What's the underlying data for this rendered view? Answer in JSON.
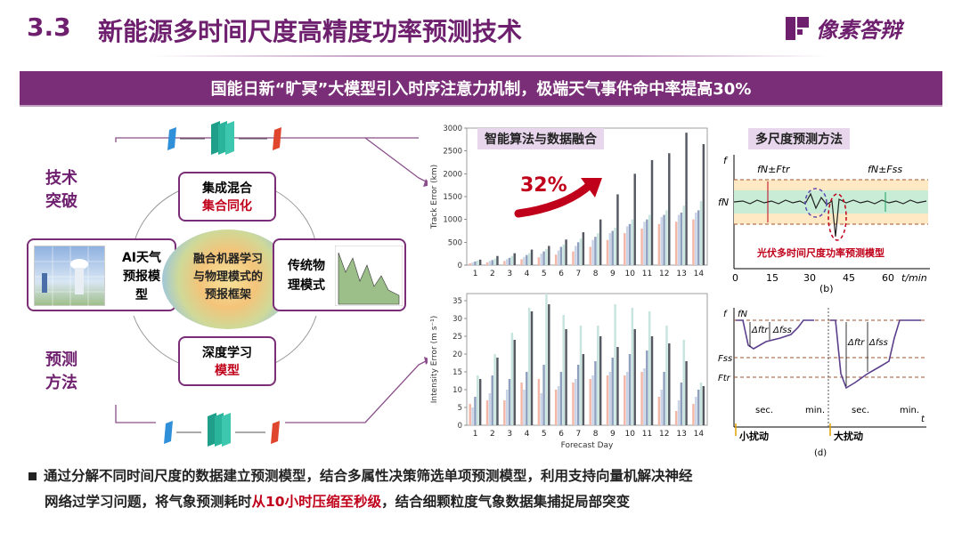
{
  "header": {
    "section_number": "3.3",
    "title": "新能源多时间尺度高精度功率预测技术",
    "logo_text": "像素答辩"
  },
  "banner": {
    "text": "国能日新“旷冥”大模型引入时序注意力机制，极端天气事件命中率提高30%"
  },
  "left_diagram": {
    "label_top_1": "技术",
    "label_top_2": "突破",
    "label_bottom_1": "预测",
    "label_bottom_2": "方法",
    "box_top_line1": "集成混合",
    "box_top_line2": "集合同化",
    "box_left_line1": "AI天气",
    "box_left_line2": "预报模",
    "box_left_line3": "型",
    "box_right_line1": "传统物",
    "box_right_line2": "理模式",
    "box_bottom_line1": "深度学习",
    "box_bottom_line2": "模型",
    "center_line1": "融合机器学习",
    "center_line2": "与物理模式的",
    "center_line3": "预报框架"
  },
  "mid_panel": {
    "label": "智能算法与数据融合",
    "improvement": "32%"
  },
  "right_panel": {
    "label": "多尺度预测方法",
    "subplot_b_caption": "光伏多时间尺度功率预测模型",
    "subplot_b_tag": "(b)",
    "subplot_d_tag": "(d)",
    "b_xticks": [
      "0",
      "15",
      "30",
      "45",
      "60"
    ],
    "b_xunit": "t/min",
    "b_yaxis": "f",
    "b_fn_label": "fN",
    "b_band1": "fN±Ftr",
    "b_band2": "fN±Fss",
    "d_yaxis": "f",
    "d_fn_label": "fN",
    "d_fss_label": "Fss",
    "d_ftr_label": "Ftr",
    "d_dftr": "Δftr",
    "d_dfss": "Δfss",
    "d_sec1": "sec.",
    "d_min1": "min.",
    "d_sec2": "sec.",
    "d_min2": "min.",
    "d_t": "t",
    "d_small": "小扰动",
    "d_large": "大扰动"
  },
  "bullet": {
    "line1": "通过分解不同时间尺度的数据建立预测模型，结合多属性决策筛选单项预测模型，利用支持向量机解决神经",
    "line2_pre": "网络过学习问题，将气象预测耗时",
    "line2_highlight": "从10小时压缩至秒级",
    "line2_post": "，结合细颗粒度气象数据集捕捉局部突变"
  },
  "chart_data": [
    {
      "type": "bar",
      "ylabel": "Track Error (km)",
      "xlabel": "",
      "ylim": [
        0,
        3000
      ],
      "yticks": [
        0,
        500,
        1000,
        1500,
        2000,
        2500,
        3000
      ],
      "categories": [
        "1",
        "2",
        "3",
        "4",
        "5",
        "6",
        "7",
        "8",
        "9",
        "10",
        "11",
        "12",
        "13",
        "14"
      ],
      "series": [
        {
          "values": [
            40,
            60,
            90,
            130,
            170,
            230,
            300,
            400,
            550,
            700,
            800,
            900,
            950,
            1000
          ],
          "color": "#f3b7a8"
        },
        {
          "values": [
            60,
            90,
            130,
            180,
            250,
            320,
            420,
            550,
            700,
            850,
            950,
            1050,
            1100,
            1150
          ],
          "color": "#c9d3e6"
        },
        {
          "values": [
            80,
            110,
            160,
            220,
            300,
            400,
            500,
            620,
            750,
            900,
            1000,
            1100,
            1150,
            1200
          ],
          "color": "#8fa0bf"
        },
        {
          "values": [
            100,
            140,
            200,
            260,
            350,
            450,
            580,
            700,
            820,
            1000,
            1100,
            1200,
            1300,
            1400
          ],
          "color": "#c7e4de"
        },
        {
          "values": [
            120,
            200,
            260,
            340,
            420,
            560,
            720,
            1000,
            1550,
            2000,
            2300,
            2450,
            2900,
            2650
          ],
          "color": "#555a62"
        }
      ]
    },
    {
      "type": "bar",
      "ylabel": "Intensity Error (m s⁻¹)",
      "xlabel": "Forecast Day",
      "ylim": [
        0,
        37
      ],
      "yticks": [
        0,
        5,
        10,
        15,
        20,
        25,
        30,
        35
      ],
      "categories": [
        "1",
        "2",
        "3",
        "4",
        "5",
        "6",
        "7",
        "8",
        "9",
        "10",
        "11",
        "12",
        "13",
        "14"
      ],
      "series": [
        {
          "values": [
            6,
            7,
            7,
            12,
            13,
            10,
            12,
            13,
            14,
            14,
            15,
            8,
            4,
            6
          ],
          "color": "#f3b7a8"
        },
        {
          "values": [
            5,
            9,
            10,
            10,
            9,
            11,
            13,
            14,
            15,
            15,
            16,
            10,
            7,
            8
          ],
          "color": "#c9d3e6"
        },
        {
          "values": [
            8,
            14,
            13,
            15,
            17,
            15,
            17,
            18,
            19,
            20,
            21,
            15,
            12,
            10
          ],
          "color": "#8fa0bf"
        },
        {
          "values": [
            14,
            20,
            26,
            33,
            37,
            31,
            28,
            28,
            34,
            33,
            32,
            28,
            24,
            12
          ],
          "color": "#c7e4de"
        },
        {
          "values": [
            13,
            19,
            24,
            32,
            34,
            27,
            20,
            25,
            22,
            27,
            25,
            23,
            18,
            11
          ],
          "color": "#555a62"
        }
      ]
    }
  ]
}
